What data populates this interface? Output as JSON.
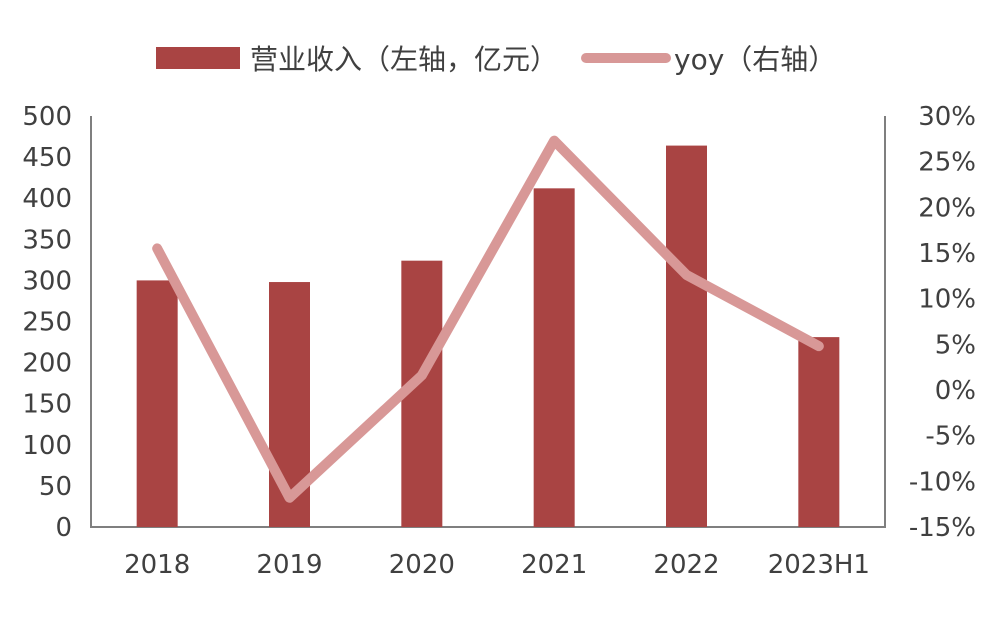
{
  "chart_data": {
    "type": "bar+line",
    "categories": [
      "2018",
      "2019",
      "2020",
      "2021",
      "2022",
      "2023H1"
    ],
    "series": [
      {
        "name": "营业收入（左轴，亿元）",
        "type": "bar",
        "axis": "left",
        "color": "#A94443",
        "values": [
          300,
          298,
          324,
          412,
          464,
          231
        ]
      },
      {
        "name": "yoy（右轴）",
        "type": "line",
        "axis": "right",
        "color": "#D89897",
        "values": [
          15.5,
          -11.8,
          1.6,
          27.3,
          12.6,
          4.8
        ]
      }
    ],
    "left_axis": {
      "min": 0,
      "max": 500,
      "step": 50,
      "ticks": [
        "0",
        "50",
        "100",
        "150",
        "200",
        "250",
        "300",
        "350",
        "400",
        "450",
        "500"
      ]
    },
    "right_axis": {
      "min": -15,
      "max": 30,
      "step": 5,
      "ticks": [
        "-15%",
        "-10%",
        "-5%",
        "0%",
        "5%",
        "10%",
        "15%",
        "20%",
        "25%",
        "30%"
      ]
    },
    "legend": {
      "placement": "top-center",
      "items": [
        "营业收入（左轴，亿元）",
        "yoy（右轴）"
      ]
    },
    "grid": false
  }
}
